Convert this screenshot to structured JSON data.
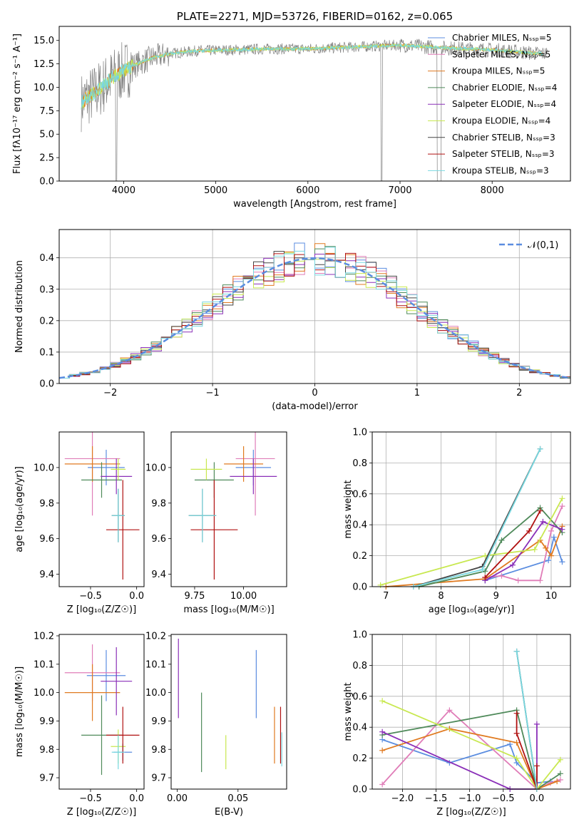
{
  "colors": {
    "c1": "#5b8de0",
    "c2": "#e07db8",
    "c3": "#e07a20",
    "c4": "#4f8a5a",
    "c5": "#8a2fb8",
    "c6": "#c8e850",
    "c7": "#444444",
    "c8": "#b01010",
    "c9": "#78d8e0",
    "grid": "#b0b0b0",
    "grey": "#808080"
  },
  "chart_data": [
    {
      "id": "spectrum",
      "type": "line",
      "title": "PLATE=2271, MJD=53726, FIBERID=0162, z=0.065",
      "xlabel": "wavelength [Angstrom, rest frame]",
      "ylabel": "Flux [fλ10⁻¹⁷ erg cm⁻² s⁻¹ A⁻¹]",
      "xlim": [
        3300,
        8850
      ],
      "ylim": [
        0,
        16.5
      ],
      "xticks": [
        4000,
        5000,
        6000,
        7000,
        8000
      ],
      "yticks": [
        0.0,
        2.5,
        5.0,
        7.5,
        10.0,
        12.5,
        15.0
      ],
      "legend": "right",
      "legend_entries": [
        "Chabrier MILES, N_SSP=5",
        "Salpeter MILES, N_SSP=5",
        "Kroupa MILES, N_SSP=5",
        "Chabrier ELODIE, N_SSP=4",
        "Salpeter ELODIE, N_SSP=4",
        "Kroupa ELODIE, N_SSP=4",
        "Chabrier STELIB, N_SSP=3",
        "Salpeter STELIB, N_SSP=3",
        "Kroupa STELIB, N_SSP=3"
      ],
      "continuum": {
        "x": [
          3550,
          3700,
          3900,
          4100,
          4300,
          4500,
          4800,
          5200,
          5600,
          6000,
          6500,
          7000,
          7500,
          8000,
          8500
        ],
        "y": [
          8.5,
          9.5,
          11.2,
          12.3,
          13.1,
          13.6,
          13.9,
          14.0,
          14.1,
          14.1,
          14.3,
          14.5,
          14.2,
          14.0,
          13.6
        ]
      }
    },
    {
      "id": "residuals",
      "type": "line",
      "xlabel": "(data-model)/error",
      "ylabel": "Normed distribution",
      "xlim": [
        -2.5,
        2.5
      ],
      "ylim": [
        0,
        0.49
      ],
      "xticks": [
        -2,
        -1,
        0,
        1,
        2
      ],
      "yticks": [
        0.0,
        0.1,
        0.2,
        0.3,
        0.4
      ],
      "legend": "top-right",
      "legend_entries": [
        "𝒩(0,1)"
      ],
      "grid": true
    },
    {
      "id": "age-Z",
      "type": "scatter",
      "xlabel": "Z [log₁₀(Z/Z☉)]",
      "ylabel": "age [log₁₀(age/yr)]",
      "xlim": [
        -0.84,
        0.08
      ],
      "ylim": [
        9.33,
        10.2
      ],
      "xticks": [
        -0.5,
        0.0
      ],
      "yticks": [
        9.4,
        9.6,
        9.8,
        10.0
      ],
      "points": [
        {
          "x": -0.33,
          "y": 10.0,
          "xerr": 0.2,
          "yerr": 0.1,
          "color": "c1"
        },
        {
          "x": -0.48,
          "y": 10.05,
          "xerr": 0.3,
          "yerr": 0.32,
          "color": "c2"
        },
        {
          "x": -0.48,
          "y": 10.02,
          "xerr": 0.3,
          "yerr": 0.1,
          "color": "c3"
        },
        {
          "x": -0.38,
          "y": 9.93,
          "xerr": 0.22,
          "yerr": 0.1,
          "color": "c4"
        },
        {
          "x": -0.22,
          "y": 9.95,
          "xerr": 0.17,
          "yerr": 0.1,
          "color": "c5"
        },
        {
          "x": -0.2,
          "y": 9.99,
          "xerr": 0.08,
          "yerr": 0.06,
          "color": "c6"
        },
        {
          "x": -0.2,
          "y": 9.73,
          "xerr": 0.07,
          "yerr": 0.15,
          "color": "c7"
        },
        {
          "x": -0.15,
          "y": 9.65,
          "xerr": 0.18,
          "yerr": 0.28,
          "color": "c8"
        },
        {
          "x": -0.2,
          "y": 9.73,
          "xerr": 0.07,
          "yerr": 0.15,
          "color": "c9"
        }
      ]
    },
    {
      "id": "age-mass",
      "type": "scatter",
      "xlabel": "mass [log₁₀(M/M☉)]",
      "ylabel": "",
      "xlim": [
        9.63,
        10.22
      ],
      "ylim": [
        9.33,
        10.2
      ],
      "xticks": [
        9.75,
        10.0
      ],
      "yticks": [
        9.4,
        9.6,
        9.8,
        10.0
      ],
      "points": [
        {
          "x": 10.05,
          "y": 10.0,
          "xerr": 0.09,
          "yerr": 0.1,
          "color": "c1"
        },
        {
          "x": 10.06,
          "y": 10.05,
          "xerr": 0.1,
          "yerr": 0.32,
          "color": "c2"
        },
        {
          "x": 10.0,
          "y": 10.02,
          "xerr": 0.1,
          "yerr": 0.1,
          "color": "c3"
        },
        {
          "x": 9.85,
          "y": 9.93,
          "xerr": 0.1,
          "yerr": 0.1,
          "color": "c4"
        },
        {
          "x": 10.05,
          "y": 9.95,
          "xerr": 0.12,
          "yerr": 0.1,
          "color": "c5"
        },
        {
          "x": 9.81,
          "y": 9.99,
          "xerr": 0.08,
          "yerr": 0.06,
          "color": "c6"
        },
        {
          "x": 9.79,
          "y": 9.73,
          "xerr": 0.07,
          "yerr": 0.15,
          "color": "c7"
        },
        {
          "x": 9.85,
          "y": 9.65,
          "xerr": 0.12,
          "yerr": 0.28,
          "color": "c8"
        },
        {
          "x": 9.79,
          "y": 9.73,
          "xerr": 0.07,
          "yerr": 0.15,
          "color": "c9"
        }
      ]
    },
    {
      "id": "weight-age",
      "type": "line",
      "xlabel": "age [log₁₀(age/yr)]",
      "ylabel": "mass weight",
      "xlim": [
        6.75,
        10.35
      ],
      "ylim": [
        0,
        1.0
      ],
      "xticks": [
        7,
        8,
        9,
        10
      ],
      "yticks": [
        0.0,
        0.2,
        0.4,
        0.6,
        0.8,
        1.0
      ],
      "grid": true,
      "series": [
        {
          "color": "c1",
          "x": [
            8.8,
            9.95,
            10.05,
            10.2
          ],
          "y": [
            0.04,
            0.17,
            0.32,
            0.16
          ]
        },
        {
          "color": "c2",
          "x": [
            8.8,
            9.1,
            9.4,
            9.8,
            10.0,
            10.2
          ],
          "y": [
            0.06,
            0.07,
            0.04,
            0.04,
            0.36,
            0.52
          ]
        },
        {
          "color": "c3",
          "x": [
            7.0,
            8.8,
            9.8,
            9.9,
            10.0,
            10.2
          ],
          "y": [
            0.0,
            0.05,
            0.3,
            0.25,
            0.2,
            0.39
          ]
        },
        {
          "color": "c4",
          "x": [
            7.6,
            8.8,
            9.1,
            9.8,
            10.2
          ],
          "y": [
            0.0,
            0.1,
            0.3,
            0.51,
            0.35
          ]
        },
        {
          "color": "c5",
          "x": [
            8.8,
            9.3,
            9.85,
            10.2
          ],
          "y": [
            0.04,
            0.14,
            0.42,
            0.37
          ]
        },
        {
          "color": "c6",
          "x": [
            6.9,
            8.8,
            9.7,
            10.2
          ],
          "y": [
            0.01,
            0.2,
            0.24,
            0.57
          ]
        },
        {
          "color": "c7",
          "x": [
            7.5,
            8.75,
            9.8
          ],
          "y": [
            0.0,
            0.13,
            0.89
          ]
        },
        {
          "color": "c8",
          "x": [
            8.8,
            9.6,
            9.8
          ],
          "y": [
            0.06,
            0.36,
            0.49
          ]
        },
        {
          "color": "c9",
          "x": [
            7.5,
            8.75,
            9.8
          ],
          "y": [
            0.0,
            0.11,
            0.89
          ]
        }
      ]
    },
    {
      "id": "mass-Z",
      "type": "scatter",
      "xlabel": "Z [log₁₀(Z/Z☉)]",
      "ylabel": "mass [log₁₀(M/M☉)]",
      "xlim": [
        -0.84,
        0.08
      ],
      "ylim": [
        9.66,
        10.205
      ],
      "xticks": [
        -0.5,
        0.0
      ],
      "yticks": [
        9.7,
        9.8,
        9.9,
        10.0,
        10.1,
        10.2
      ],
      "points": [
        {
          "x": -0.33,
          "y": 10.06,
          "xerr": 0.21,
          "yerr": 0.09,
          "color": "c1"
        },
        {
          "x": -0.48,
          "y": 10.07,
          "xerr": 0.3,
          "yerr": 0.1,
          "color": "c2"
        },
        {
          "x": -0.48,
          "y": 10.0,
          "xerr": 0.3,
          "yerr": 0.1,
          "color": "c3"
        },
        {
          "x": -0.38,
          "y": 9.85,
          "xerr": 0.22,
          "yerr": 0.14,
          "color": "c4"
        },
        {
          "x": -0.22,
          "y": 10.04,
          "xerr": 0.17,
          "yerr": 0.12,
          "color": "c5"
        },
        {
          "x": -0.2,
          "y": 9.81,
          "xerr": 0.08,
          "yerr": 0.06,
          "color": "c6"
        },
        {
          "x": -0.15,
          "y": 9.79,
          "xerr": 0.1,
          "yerr": 0.03,
          "color": "c1"
        },
        {
          "x": -0.15,
          "y": 9.85,
          "xerr": 0.18,
          "yerr": 0.1,
          "color": "c8"
        },
        {
          "x": -0.2,
          "y": 9.79,
          "xerr": 0.07,
          "yerr": 0.06,
          "color": "c9"
        }
      ]
    },
    {
      "id": "mass-EBV",
      "type": "scatter",
      "xlabel": "E(B-V)",
      "ylabel": "",
      "xlim": [
        -0.005,
        0.09
      ],
      "ylim": [
        9.66,
        10.205
      ],
      "xticks": [
        0.0,
        0.05
      ],
      "yticks": [
        9.7,
        9.8,
        9.9,
        10.0,
        10.1,
        10.2
      ],
      "points": [
        {
          "x": 0.001,
          "y": 10.05,
          "yerr": 0.14,
          "color": "c5"
        },
        {
          "x": 0.02,
          "y": 9.86,
          "yerr": 0.14,
          "color": "c4"
        },
        {
          "x": 0.04,
          "y": 9.79,
          "yerr": 0.06,
          "color": "c6"
        },
        {
          "x": 0.065,
          "y": 10.03,
          "yerr": 0.12,
          "color": "c1"
        },
        {
          "x": 0.08,
          "y": 9.85,
          "yerr": 0.1,
          "color": "c3"
        },
        {
          "x": 0.085,
          "y": 9.85,
          "yerr": 0.1,
          "color": "c8"
        },
        {
          "x": 0.086,
          "y": 9.8,
          "yerr": 0.06,
          "color": "c9"
        }
      ]
    },
    {
      "id": "weight-Z",
      "type": "line",
      "xlabel": "Z [log₁₀(Z/Z☉)]",
      "ylabel": "mass weight",
      "xlim": [
        -2.45,
        0.5
      ],
      "ylim": [
        0,
        1.0
      ],
      "xticks": [
        -2.0,
        -1.5,
        -1.0,
        -0.5,
        0.0
      ],
      "yticks": [
        0.0,
        0.2,
        0.4,
        0.6,
        0.8,
        1.0
      ],
      "grid": true,
      "series": [
        {
          "color": "c1",
          "x": [
            -2.3,
            -1.3,
            -0.4,
            -0.3,
            0.0,
            0.2
          ],
          "y": [
            0.32,
            0.17,
            0.29,
            0.17,
            0.04,
            0.05
          ]
        },
        {
          "color": "c2",
          "x": [
            -2.3,
            -1.3,
            0.0,
            0.2,
            0.35
          ],
          "y": [
            0.03,
            0.51,
            0.0,
            0.04,
            0.06
          ]
        },
        {
          "color": "c3",
          "x": [
            -2.3,
            -1.3,
            -0.3,
            0.0,
            0.3
          ],
          "y": [
            0.25,
            0.39,
            0.3,
            0.0,
            0.05
          ]
        },
        {
          "color": "c4",
          "x": [
            -2.3,
            -0.3,
            0.0,
            0.35
          ],
          "y": [
            0.35,
            0.51,
            0.0,
            0.1
          ]
        },
        {
          "color": "c5",
          "x": [
            -2.3,
            -0.4,
            0.0,
            0.0
          ],
          "y": [
            0.37,
            0.0,
            0.0,
            0.42
          ]
        },
        {
          "color": "c6",
          "x": [
            -2.3,
            -0.3,
            0.0,
            0.35
          ],
          "y": [
            0.57,
            0.2,
            0.0,
            0.19
          ]
        },
        {
          "color": "c7",
          "x": [
            -0.3,
            0.0
          ],
          "y": [
            0.89,
            0.0
          ]
        },
        {
          "color": "c8",
          "x": [
            -0.3,
            -0.3,
            0.0,
            0.0
          ],
          "y": [
            0.49,
            0.36,
            0.0,
            0.15
          ]
        },
        {
          "color": "c9",
          "x": [
            -0.3,
            0.0
          ],
          "y": [
            0.89,
            0.0
          ]
        }
      ]
    }
  ]
}
